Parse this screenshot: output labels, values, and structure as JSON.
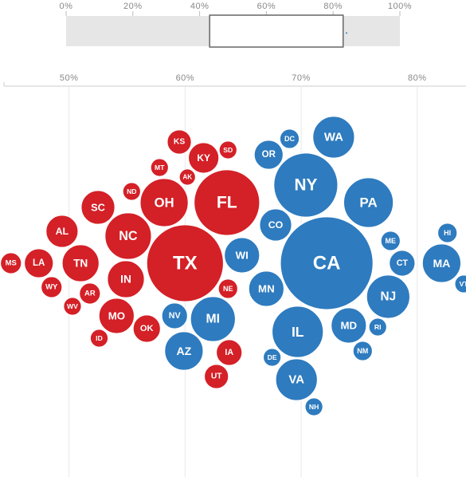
{
  "colors": {
    "red": "#d42027",
    "blue": "#2e7bbf",
    "overview_band": "#e6e6e6",
    "window_border": "#666666"
  },
  "overview_axis": {
    "min": 0,
    "max": 100,
    "ticks": [
      {
        "value": 0,
        "label": "0%"
      },
      {
        "value": 20,
        "label": "20%"
      },
      {
        "value": 40,
        "label": "40%"
      },
      {
        "value": 60,
        "label": "60%"
      },
      {
        "value": 80,
        "label": "80%"
      },
      {
        "value": 100,
        "label": "100%"
      }
    ],
    "window_range": [
      43,
      83
    ]
  },
  "chart_data": {
    "type": "bubble",
    "title": "",
    "xlabel": "",
    "ylabel": "",
    "x_unit": "%",
    "xlim": [
      44.4,
      84.2
    ],
    "ticks": [
      {
        "value": 50,
        "label": "50%"
      },
      {
        "value": 60,
        "label": "60%"
      },
      {
        "value": 70,
        "label": "70%"
      },
      {
        "value": 80,
        "label": "80%"
      }
    ],
    "grid": true,
    "legend": "none",
    "series": [
      {
        "color": "red",
        "points": [
          {
            "label": "MS",
            "x": 45.0,
            "r": 13
          },
          {
            "label": "LA",
            "x": 47.4,
            "r": 18
          },
          {
            "label": "WY",
            "x": 48.5,
            "r": 13
          },
          {
            "label": "AL",
            "x": 49.4,
            "r": 20
          },
          {
            "label": "WV",
            "x": 50.3,
            "r": 11
          },
          {
            "label": "TN",
            "x": 51.0,
            "r": 23
          },
          {
            "label": "AR",
            "x": 51.8,
            "r": 13
          },
          {
            "label": "SC",
            "x": 52.5,
            "r": 21
          },
          {
            "label": "ID",
            "x": 52.6,
            "r": 11
          },
          {
            "label": "MO",
            "x": 54.1,
            "r": 22
          },
          {
            "label": "IN",
            "x": 54.9,
            "r": 23
          },
          {
            "label": "NC",
            "x": 55.1,
            "r": 29
          },
          {
            "label": "ND",
            "x": 55.4,
            "r": 11
          },
          {
            "label": "OK",
            "x": 56.7,
            "r": 17
          },
          {
            "label": "MT",
            "x": 57.8,
            "r": 11
          },
          {
            "label": "OH",
            "x": 58.2,
            "r": 30
          },
          {
            "label": "KS",
            "x": 59.5,
            "r": 15
          },
          {
            "label": "TX",
            "x": 60.0,
            "r": 48
          },
          {
            "label": "AK",
            "x": 60.2,
            "r": 10
          },
          {
            "label": "KY",
            "x": 61.6,
            "r": 19
          },
          {
            "label": "UT",
            "x": 62.7,
            "r": 15
          },
          {
            "label": "SD",
            "x": 63.7,
            "r": 11
          },
          {
            "label": "NE",
            "x": 63.7,
            "r": 12
          },
          {
            "label": "IA",
            "x": 63.8,
            "r": 16
          },
          {
            "label": "FL",
            "x": 63.6,
            "r": 41
          }
        ]
      },
      {
        "color": "blue",
        "points": [
          {
            "label": "NV",
            "x": 59.1,
            "r": 16
          },
          {
            "label": "AZ",
            "x": 59.9,
            "r": 24
          },
          {
            "label": "MI",
            "x": 62.4,
            "r": 28
          },
          {
            "label": "WI",
            "x": 64.9,
            "r": 22
          },
          {
            "label": "MN",
            "x": 67.0,
            "r": 22
          },
          {
            "label": "OR",
            "x": 67.2,
            "r": 18
          },
          {
            "label": "DE",
            "x": 67.5,
            "r": 11
          },
          {
            "label": "CO",
            "x": 67.8,
            "r": 20
          },
          {
            "label": "DC",
            "x": 69.0,
            "r": 12
          },
          {
            "label": "VA",
            "x": 69.6,
            "r": 26
          },
          {
            "label": "IL",
            "x": 69.7,
            "r": 32
          },
          {
            "label": "NY",
            "x": 70.4,
            "r": 40
          },
          {
            "label": "NH",
            "x": 71.1,
            "r": 11
          },
          {
            "label": "CA",
            "x": 72.2,
            "r": 58
          },
          {
            "label": "WA",
            "x": 72.8,
            "r": 26
          },
          {
            "label": "MD",
            "x": 74.1,
            "r": 22
          },
          {
            "label": "NM",
            "x": 75.3,
            "r": 12
          },
          {
            "label": "PA",
            "x": 75.8,
            "r": 31
          },
          {
            "label": "RI",
            "x": 76.6,
            "r": 11
          },
          {
            "label": "ME",
            "x": 77.7,
            "r": 12
          },
          {
            "label": "NJ",
            "x": 77.5,
            "r": 27
          },
          {
            "label": "CT",
            "x": 78.7,
            "r": 16
          },
          {
            "label": "HI",
            "x": 82.6,
            "r": 12
          },
          {
            "label": "MA",
            "x": 82.1,
            "r": 24
          },
          {
            "label": "VT",
            "x": 84.0,
            "r": 11
          }
        ]
      }
    ]
  }
}
